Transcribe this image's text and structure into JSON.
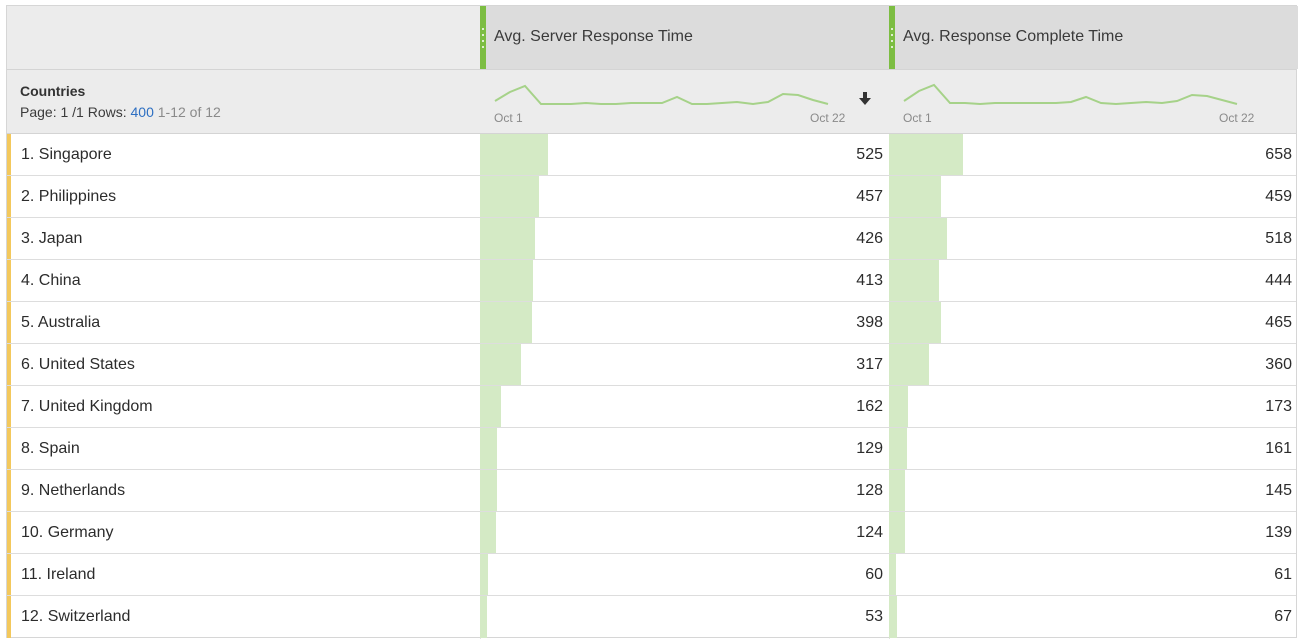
{
  "dimension": {
    "title": "Countries"
  },
  "pager": {
    "page_label": "Page: 1 /1",
    "rows_label": "Rows:",
    "rows_value": "400",
    "range": "1-12 of 12"
  },
  "metrics": [
    {
      "title": "Avg. Server Response Time",
      "spark_start": "Oct 1",
      "spark_end": "Oct 22",
      "sorted": true,
      "max": 525
    },
    {
      "title": "Avg. Response Complete Time",
      "spark_start": "Oct 1",
      "spark_end": "Oct 22",
      "sorted": false,
      "max": 658
    }
  ],
  "colors": {
    "accent": "#7cbd42",
    "bar": "#d4eac5",
    "sparkline": "#a6d289",
    "row_marker": "#f3c85c",
    "link": "#2d6fc2"
  },
  "icons": {
    "sort": "arrow-down-icon",
    "grip": "column-grip-icon"
  },
  "rows": [
    {
      "name": "1. Singapore",
      "v1": 525,
      "v2": 658
    },
    {
      "name": "2. Philippines",
      "v1": 457,
      "v2": 459
    },
    {
      "name": "3. Japan",
      "v1": 426,
      "v2": 518
    },
    {
      "name": "4. China",
      "v1": 413,
      "v2": 444
    },
    {
      "name": "5. Australia",
      "v1": 398,
      "v2": 465
    },
    {
      "name": "6. United States",
      "v1": 317,
      "v2": 360
    },
    {
      "name": "7. United Kingdom",
      "v1": 162,
      "v2": 173
    },
    {
      "name": "8. Spain",
      "v1": 129,
      "v2": 161
    },
    {
      "name": "9. Netherlands",
      "v1": 128,
      "v2": 145
    },
    {
      "name": "10. Germany",
      "v1": 124,
      "v2": 139
    },
    {
      "name": "11. Ireland",
      "v1": 60,
      "v2": 61
    },
    {
      "name": "12. Switzerland",
      "v1": 53,
      "v2": 67
    }
  ]
}
